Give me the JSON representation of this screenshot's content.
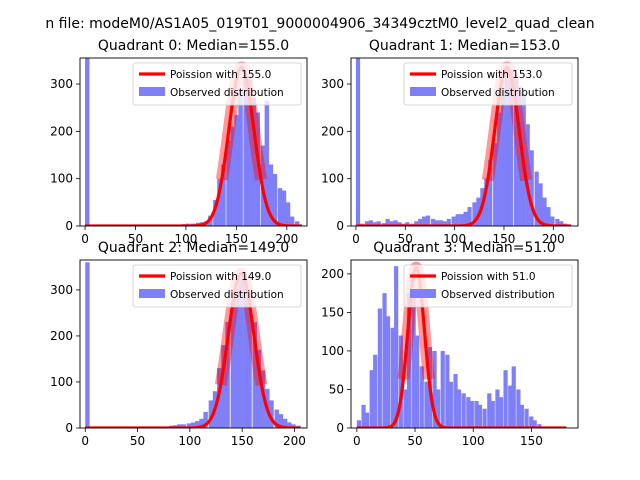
{
  "figure_title": "n file: modeM0/AS1A05_019T01_9000004906_34349cztM0_level2_quad_clean",
  "chart_data": [
    {
      "type": "bar",
      "title": "Quadrant 0: Median=155.0",
      "xlim": [
        -5,
        220
      ],
      "ylim": [
        0,
        355
      ],
      "xticks": [
        0,
        50,
        100,
        150,
        200
      ],
      "yticks": [
        0,
        100,
        200,
        300
      ],
      "bin_width": 4.4,
      "legend": [
        "Poission with 155.0",
        "Observed distribution"
      ],
      "poisson_mean": 155.0,
      "poisson_peak": 335,
      "poisson_sigma": 12.45,
      "poisson_range": [
        0,
        215
      ],
      "bins": [
        [
          0,
          355
        ],
        [
          4,
          3
        ],
        [
          88,
          3
        ],
        [
          96,
          4
        ],
        [
          100,
          5
        ],
        [
          105,
          5
        ],
        [
          110,
          7
        ],
        [
          114,
          8
        ],
        [
          118,
          10
        ],
        [
          122,
          22
        ],
        [
          127,
          55
        ],
        [
          131,
          100
        ],
        [
          135,
          130
        ],
        [
          140,
          180
        ],
        [
          144,
          210
        ],
        [
          148,
          235
        ],
        [
          152,
          290
        ],
        [
          157,
          320
        ],
        [
          161,
          310
        ],
        [
          165,
          270
        ],
        [
          169,
          240
        ],
        [
          174,
          170
        ],
        [
          178,
          265
        ],
        [
          182,
          130
        ],
        [
          186,
          110
        ],
        [
          191,
          80
        ],
        [
          195,
          75
        ],
        [
          199,
          50
        ],
        [
          203,
          20
        ],
        [
          208,
          10
        ]
      ]
    },
    {
      "type": "bar",
      "title": "Quadrant 1: Median=153.0",
      "xlim": [
        -5,
        225
      ],
      "ylim": [
        0,
        355
      ],
      "xticks": [
        0,
        50,
        100,
        150,
        200
      ],
      "yticks": [
        0,
        100,
        200,
        300
      ],
      "bin_width": 4.2,
      "legend": [
        "Poission with 153.0",
        "Observed distribution"
      ],
      "poisson_mean": 153.0,
      "poisson_peak": 335,
      "poisson_sigma": 12.37,
      "poisson_range": [
        0,
        218
      ],
      "bins": [
        [
          0,
          355
        ],
        [
          4,
          5
        ],
        [
          9,
          10
        ],
        [
          13,
          12
        ],
        [
          17,
          8
        ],
        [
          21,
          10
        ],
        [
          26,
          6
        ],
        [
          30,
          15
        ],
        [
          34,
          10
        ],
        [
          38,
          12
        ],
        [
          42,
          8
        ],
        [
          46,
          5
        ],
        [
          50,
          8
        ],
        [
          55,
          5
        ],
        [
          59,
          10
        ],
        [
          63,
          15
        ],
        [
          67,
          20
        ],
        [
          71,
          22
        ],
        [
          76,
          15
        ],
        [
          80,
          12
        ],
        [
          84,
          12
        ],
        [
          88,
          10
        ],
        [
          92,
          15
        ],
        [
          97,
          20
        ],
        [
          101,
          25
        ],
        [
          105,
          25
        ],
        [
          109,
          30
        ],
        [
          113,
          40
        ],
        [
          118,
          50
        ],
        [
          122,
          60
        ],
        [
          126,
          80
        ],
        [
          130,
          100
        ],
        [
          134,
          140
        ],
        [
          139,
          175
        ],
        [
          143,
          240
        ],
        [
          147,
          290
        ],
        [
          151,
          330
        ],
        [
          155,
          330
        ],
        [
          160,
          320
        ],
        [
          164,
          295
        ],
        [
          168,
          280
        ],
        [
          172,
          215
        ],
        [
          176,
          160
        ],
        [
          181,
          115
        ],
        [
          185,
          90
        ],
        [
          189,
          60
        ],
        [
          193,
          40
        ],
        [
          197,
          20
        ],
        [
          202,
          15
        ],
        [
          206,
          10
        ],
        [
          210,
          5
        ]
      ]
    },
    {
      "type": "bar",
      "title": "Quadrant 2: Median=149.0",
      "xlim": [
        -5,
        212
      ],
      "ylim": [
        0,
        365
      ],
      "xticks": [
        0,
        50,
        100,
        150,
        200
      ],
      "yticks": [
        0,
        100,
        200,
        300
      ],
      "bin_width": 4.2,
      "legend": [
        "Poission with 149.0",
        "Observed distribution"
      ],
      "poisson_mean": 149.0,
      "poisson_peak": 335,
      "poisson_sigma": 12.21,
      "poisson_range": [
        0,
        205
      ],
      "bins": [
        [
          0,
          360
        ],
        [
          80,
          5
        ],
        [
          84,
          6
        ],
        [
          88,
          8
        ],
        [
          92,
          8
        ],
        [
          97,
          10
        ],
        [
          101,
          12
        ],
        [
          105,
          15
        ],
        [
          109,
          20
        ],
        [
          113,
          35
        ],
        [
          118,
          60
        ],
        [
          122,
          80
        ],
        [
          126,
          130
        ],
        [
          130,
          180
        ],
        [
          134,
          230
        ],
        [
          139,
          270
        ],
        [
          143,
          300
        ],
        [
          147,
          325
        ],
        [
          151,
          320
        ],
        [
          155,
          280
        ],
        [
          160,
          230
        ],
        [
          164,
          170
        ],
        [
          168,
          125
        ],
        [
          172,
          85
        ],
        [
          176,
          60
        ],
        [
          181,
          40
        ],
        [
          185,
          30
        ],
        [
          189,
          20
        ],
        [
          193,
          12
        ],
        [
          197,
          8
        ],
        [
          202,
          5
        ]
      ]
    },
    {
      "type": "bar",
      "title": "Quadrant 3: Median=51.0",
      "xlim": [
        -5,
        190
      ],
      "ylim": [
        0,
        218
      ],
      "xticks": [
        0,
        50,
        100,
        150
      ],
      "yticks": [
        0,
        50,
        100,
        150,
        200
      ],
      "bin_width": 3.6,
      "legend": [
        "Poission with 51.0",
        "Observed distribution"
      ],
      "poisson_mean": 51.0,
      "poisson_peak": 208,
      "poisson_sigma": 7.14,
      "poisson_range": [
        0,
        180
      ],
      "bins": [
        [
          0,
          10
        ],
        [
          4,
          30
        ],
        [
          7,
          20
        ],
        [
          11,
          75
        ],
        [
          14,
          95
        ],
        [
          18,
          155
        ],
        [
          22,
          175
        ],
        [
          25,
          145
        ],
        [
          29,
          130
        ],
        [
          32,
          210
        ],
        [
          36,
          120
        ],
        [
          40,
          50
        ],
        [
          43,
          175
        ],
        [
          47,
          180
        ],
        [
          50,
          120
        ],
        [
          54,
          80
        ],
        [
          58,
          60
        ],
        [
          61,
          105
        ],
        [
          65,
          100
        ],
        [
          68,
          50
        ],
        [
          72,
          100
        ],
        [
          76,
          95
        ],
        [
          79,
          60
        ],
        [
          83,
          70
        ],
        [
          86,
          50
        ],
        [
          90,
          45
        ],
        [
          94,
          40
        ],
        [
          97,
          35
        ],
        [
          101,
          35
        ],
        [
          104,
          30
        ],
        [
          108,
          25
        ],
        [
          112,
          45
        ],
        [
          115,
          35
        ],
        [
          119,
          50
        ],
        [
          122,
          40
        ],
        [
          126,
          75
        ],
        [
          130,
          55
        ],
        [
          133,
          80
        ],
        [
          137,
          50
        ],
        [
          140,
          30
        ],
        [
          144,
          25
        ],
        [
          148,
          15
        ],
        [
          151,
          10
        ],
        [
          155,
          5
        ]
      ]
    }
  ]
}
